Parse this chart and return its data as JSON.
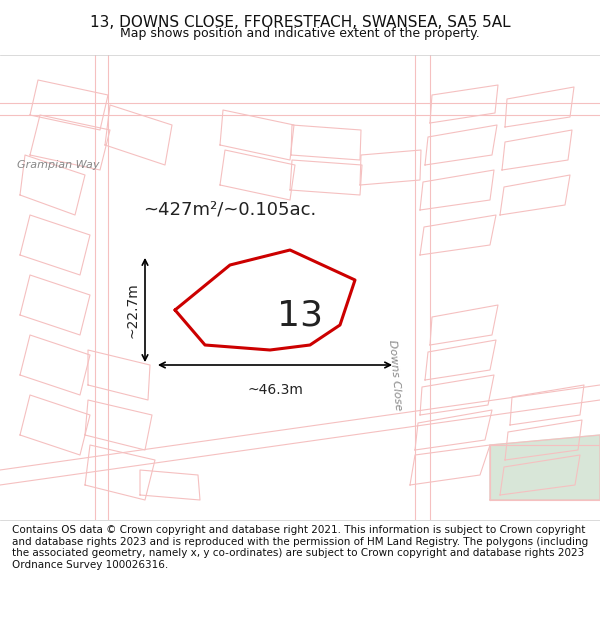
{
  "title_line1": "13, DOWNS CLOSE, FFORESTFACH, SWANSEA, SA5 5AL",
  "title_line2": "Map shows position and indicative extent of the property.",
  "footer_text": "Contains OS data © Crown copyright and database right 2021. This information is subject to Crown copyright and database rights 2023 and is reproduced with the permission of HM Land Registry. The polygons (including the associated geometry, namely x, y co-ordinates) are subject to Crown copyright and database rights 2023 Ordnance Survey 100026316.",
  "bg_color": "#f0f0ed",
  "map_bg_color": "#f0f0ed",
  "road_color": "#f5c0c0",
  "road_fill": "#ffffff",
  "plot_color": "#cc0000",
  "plot_fill": "none",
  "green_area_color": "#c8dcc8",
  "label_area": "~427m²/~0.105ac.",
  "label_number": "13",
  "label_width": "~46.3m",
  "label_height": "~22.7m",
  "street_label": "Downs Close",
  "grampian_label": "Grampian Way",
  "title_fontsize": 11,
  "subtitle_fontsize": 9,
  "footer_fontsize": 7.5,
  "header_bg": "#ffffff",
  "footer_bg": "#ffffff"
}
